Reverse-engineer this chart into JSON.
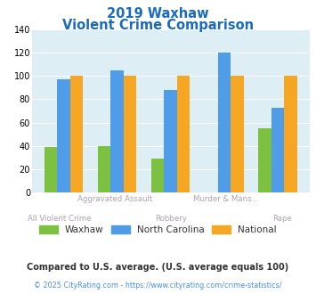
{
  "title_line1": "2019 Waxhaw",
  "title_line2": "Violent Crime Comparison",
  "waxhaw": [
    39,
    40,
    29,
    0,
    55
  ],
  "north_carolina": [
    97,
    105,
    88,
    120,
    73
  ],
  "national": [
    100,
    100,
    100,
    100,
    100
  ],
  "waxhaw_color": "#7dc142",
  "nc_color": "#4f9de8",
  "national_color": "#f5a623",
  "ylim": [
    0,
    140
  ],
  "yticks": [
    0,
    20,
    40,
    60,
    80,
    100,
    120,
    140
  ],
  "plot_bg": "#ddeef4",
  "title_color": "#1a6bbf",
  "xlabel_top_color": "#b0a0b0",
  "xlabel_bot_color": "#b0a0b0",
  "grid_color": "#ffffff",
  "legend_text_color": "#333333",
  "footnote1": "Compared to U.S. average. (U.S. average equals 100)",
  "footnote2": "© 2025 CityRating.com - https://www.cityrating.com/crime-statistics/",
  "footnote1_color": "#333333",
  "footnote2_color": "#4a90d9",
  "top_labels": [
    "",
    "Aggravated Assault",
    "",
    "Murder & Mans...",
    ""
  ],
  "bot_labels": [
    "All Violent Crime",
    "",
    "Robbery",
    "",
    "Rape"
  ]
}
